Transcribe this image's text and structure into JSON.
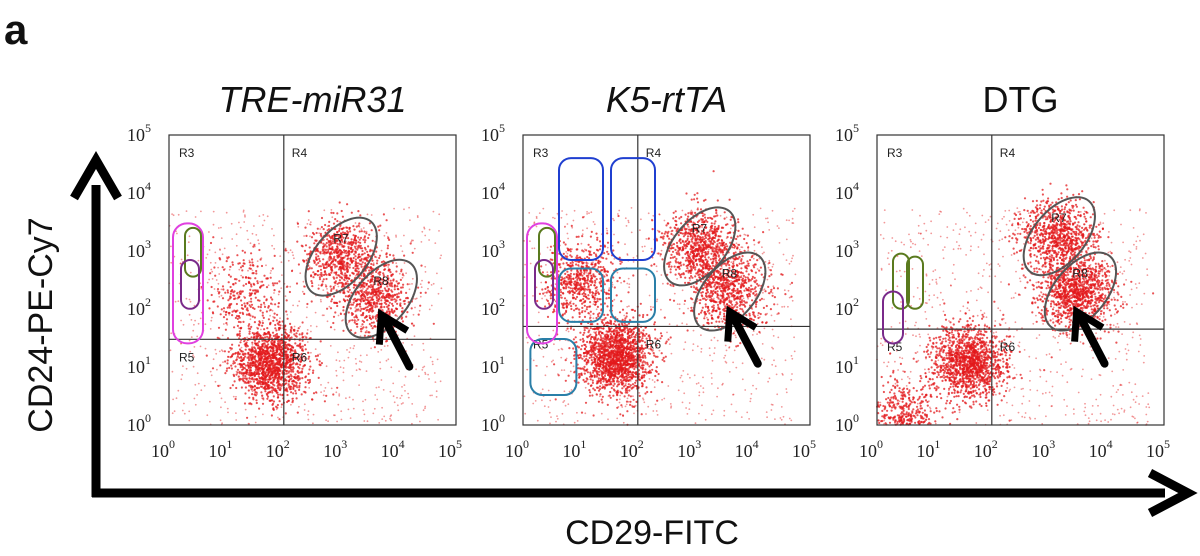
{
  "panel_letter": "a",
  "x_axis_title": "CD29-FITC",
  "y_axis_title": "CD24-PE-Cy7",
  "colors": {
    "events": "#e31a1c",
    "ellipse_gate": "#555555",
    "magenta_gate": "#e040e0",
    "green_gate": "#5a7a1e",
    "purple_gate": "#7a2a8a",
    "blue_gate": "#1f3fd0",
    "teal_gate": "#2a7fa8"
  },
  "chart_data": [
    {
      "type": "scatter",
      "title": "TRE-miR31",
      "title_italic": true,
      "x_scale": "log",
      "y_scale": "log",
      "xlim": [
        1,
        100000
      ],
      "ylim": [
        1,
        100000
      ],
      "x_ticks": [
        "10",
        "10",
        "10",
        "10",
        "10",
        "10"
      ],
      "x_tick_exps": [
        "0",
        "1",
        "2",
        "3",
        "4",
        "5"
      ],
      "y_ticks": [
        "10",
        "10",
        "10",
        "10",
        "10",
        "10"
      ],
      "y_tick_exps": [
        "0",
        "1",
        "2",
        "3",
        "4",
        "5"
      ],
      "quadrant_split": {
        "x": 100,
        "y": 30
      },
      "quadrant_labels": [
        "R3",
        "R4",
        "R5",
        "R6"
      ],
      "gates": [
        {
          "label": "R7",
          "shape": "ellipse",
          "center": [
            1000,
            800
          ]
        },
        {
          "label": "R8",
          "shape": "ellipse",
          "center": [
            5000,
            150
          ]
        }
      ],
      "clusters": [
        {
          "center": [
            60,
            12
          ],
          "n": 1400
        },
        {
          "center": [
            1000,
            800
          ],
          "n": 700
        },
        {
          "center": [
            4000,
            150
          ],
          "n": 600
        },
        {
          "center": [
            20,
            200
          ],
          "n": 250
        }
      ],
      "arrow_points_to": [
        5000,
        80
      ]
    },
    {
      "type": "scatter",
      "title": "K5-rtTA",
      "title_italic": true,
      "x_scale": "log",
      "y_scale": "log",
      "xlim": [
        1,
        100000
      ],
      "ylim": [
        1,
        100000
      ],
      "x_ticks": [
        "10",
        "10",
        "10",
        "10",
        "10",
        "10"
      ],
      "x_tick_exps": [
        "0",
        "1",
        "2",
        "3",
        "4",
        "5"
      ],
      "y_ticks": [
        "10",
        "10",
        "10",
        "10",
        "10",
        "10"
      ],
      "y_tick_exps": [
        "0",
        "1",
        "2",
        "3",
        "4",
        "5"
      ],
      "quadrant_split": {
        "x": 100,
        "y": 50
      },
      "quadrant_labels": [
        "R3",
        "R4",
        "R5",
        "R6"
      ],
      "gates": [
        {
          "label": "R7",
          "shape": "ellipse",
          "center": [
            1200,
            1200
          ]
        },
        {
          "label": "R8",
          "shape": "ellipse",
          "center": [
            4000,
            200
          ]
        },
        {
          "label": "R5",
          "shape": "rounded-rect",
          "center": [
            3,
            10
          ]
        }
      ],
      "clusters": [
        {
          "center": [
            40,
            15
          ],
          "n": 1600
        },
        {
          "center": [
            1200,
            1200
          ],
          "n": 800
        },
        {
          "center": [
            4000,
            200
          ],
          "n": 700
        },
        {
          "center": [
            10,
            300
          ],
          "n": 600
        }
      ],
      "arrow_points_to": [
        4000,
        90
      ]
    },
    {
      "type": "scatter",
      "title": "DTG",
      "title_italic": false,
      "x_scale": "log",
      "y_scale": "log",
      "xlim": [
        1,
        100000
      ],
      "ylim": [
        1,
        100000
      ],
      "x_ticks": [
        "10",
        "10",
        "10",
        "10",
        "10",
        "10"
      ],
      "x_tick_exps": [
        "0",
        "1",
        "2",
        "3",
        "4",
        "5"
      ],
      "y_ticks": [
        "10",
        "10",
        "10",
        "10",
        "10",
        "10"
      ],
      "y_tick_exps": [
        "0",
        "1",
        "2",
        "3",
        "4",
        "5"
      ],
      "quadrant_split": {
        "x": 100,
        "y": 45
      },
      "quadrant_labels": [
        "R3",
        "R4",
        "R5",
        "R6"
      ],
      "gates": [
        {
          "label": "R7",
          "shape": "ellipse",
          "center": [
            1500,
            1800
          ]
        },
        {
          "label": "R8",
          "shape": "ellipse",
          "center": [
            3500,
            200
          ]
        }
      ],
      "clusters": [
        {
          "center": [
            40,
            12
          ],
          "n": 1300
        },
        {
          "center": [
            1500,
            1800
          ],
          "n": 800
        },
        {
          "center": [
            3000,
            200
          ],
          "n": 1100
        },
        {
          "center": [
            3,
            1.3
          ],
          "n": 500
        }
      ],
      "arrow_points_to": [
        3000,
        90
      ]
    }
  ]
}
